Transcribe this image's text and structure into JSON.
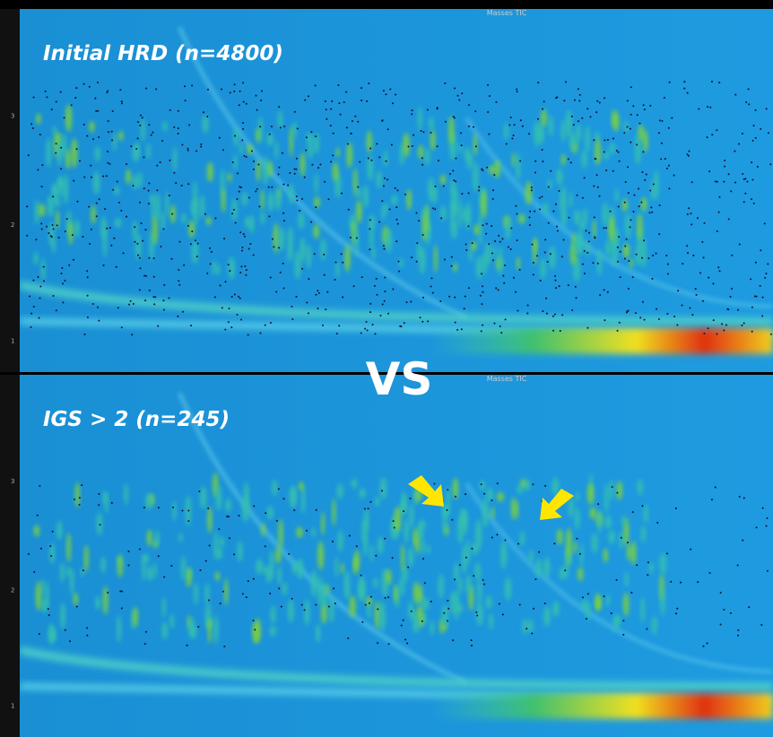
{
  "panels": [
    {
      "header": "Masses  TIC",
      "title": "Initial HRD (n=4800)",
      "axis_labels": [
        "3",
        "2",
        "1"
      ]
    },
    {
      "header": "Masses  TIC",
      "title": "IGS > 2 (n=245)",
      "axis_labels": [
        "3",
        "2",
        "1"
      ]
    }
  ],
  "separator": "VS"
}
